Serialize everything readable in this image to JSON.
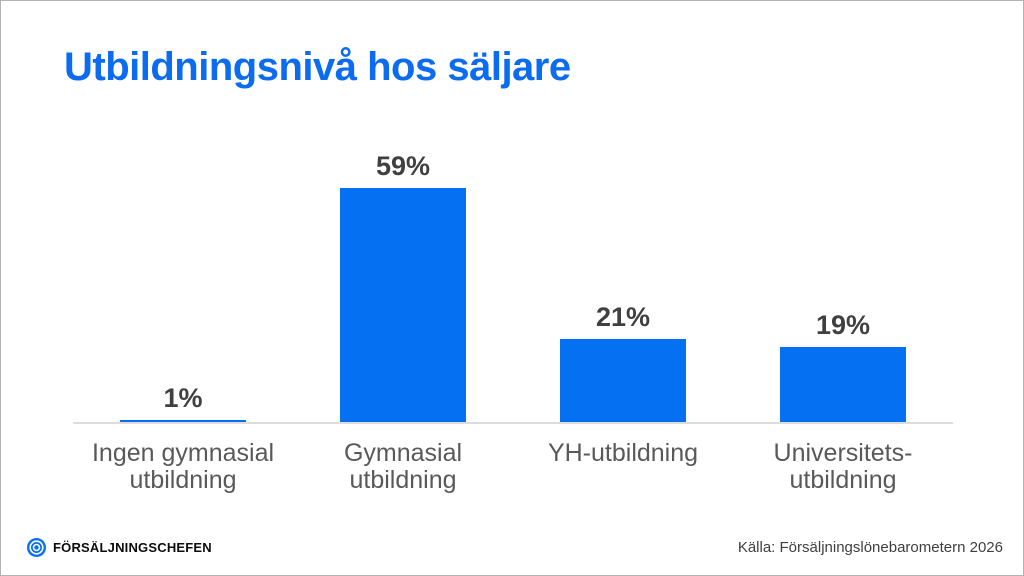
{
  "footer": {
    "brand": "FÖRSÄLJNINGSCHEFEN",
    "source": "Källa: Försäljningslönebarometern 2026"
  },
  "colors": {
    "title_blue": "#0B6CF0",
    "bar_blue": "#0571F2",
    "value_label_gray": "#404040",
    "category_label_gray": "#595959",
    "baseline_gray": "#DCDCDC",
    "source_gray": "#3F3F3F",
    "logo_blue": "#0571F2"
  },
  "chart_data": {
    "type": "bar",
    "title": "Utbildningsnivå hos säljare",
    "categories": [
      "Ingen gymnasial utbildning",
      "Gymnasial utbildning",
      "YH-utbildning",
      "Universitets-utbildning"
    ],
    "category_display": [
      "Ingen gymnasial\nutbildning",
      "Gymnasial\nutbildning",
      "YH-utbildning",
      "Universitets-\nutbildning"
    ],
    "values": [
      1,
      59,
      21,
      19
    ],
    "value_labels": [
      "1%",
      "59%",
      "21%",
      "19%"
    ],
    "unit": "%",
    "ylim": [
      0,
      59
    ],
    "grid": false,
    "legend": false,
    "y_axis_visible": false
  }
}
